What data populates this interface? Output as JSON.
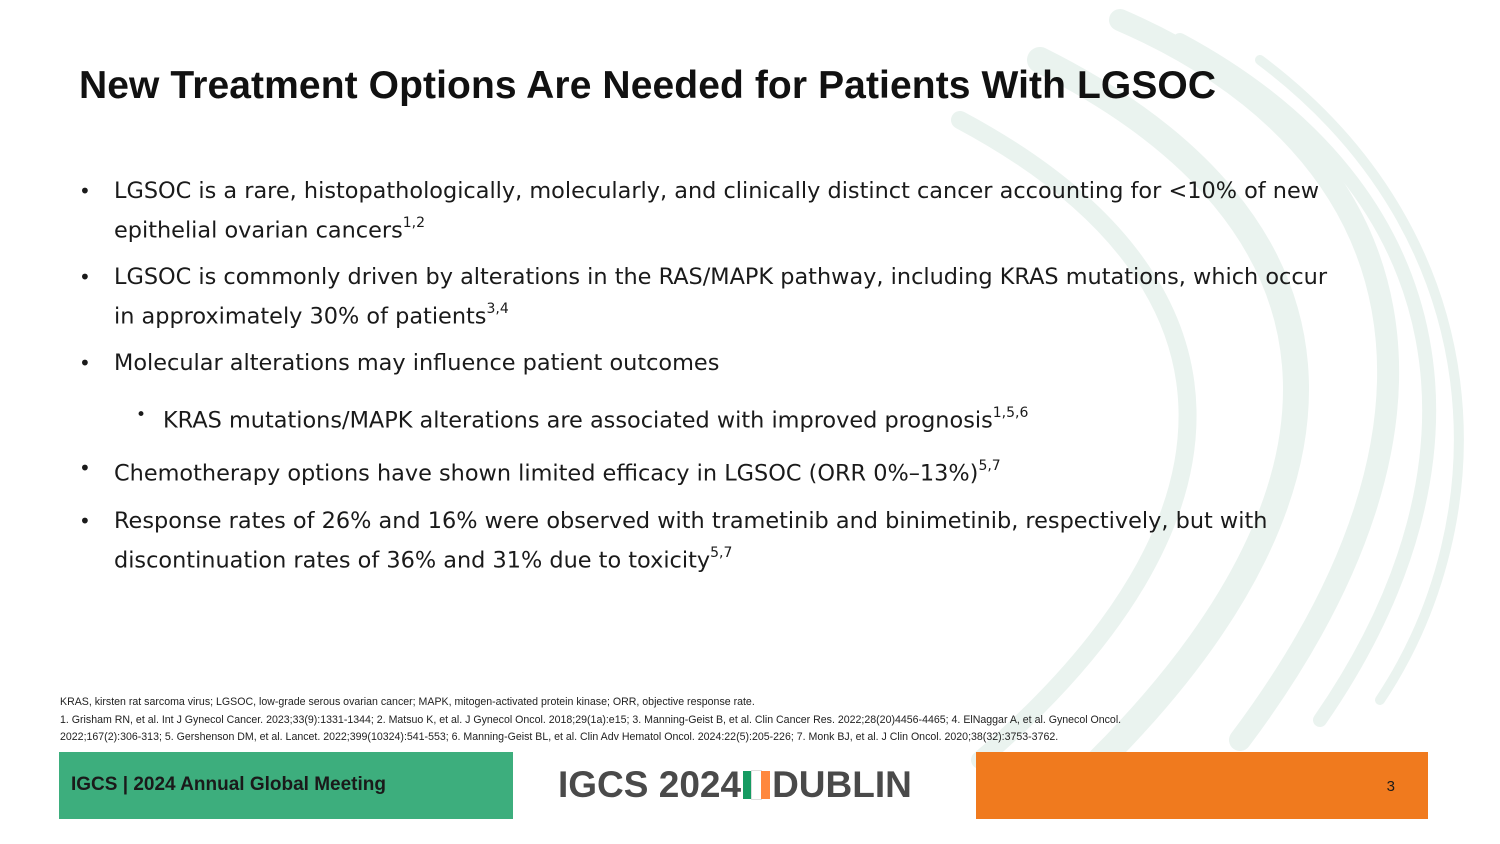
{
  "slide": {
    "title": "New Treatment Options Are Needed for Patients With LGSOC",
    "page_number": "3"
  },
  "bullets": [
    {
      "line1": "LGSOC is a rare, histopathologically, molecularly, and clinically distinct cancer accounting for <10% of new",
      "line2": "epithelial ovarian cancers",
      "refs": "1,2"
    },
    {
      "line1": "LGSOC is commonly driven by alterations in the RAS/MAPK pathway, including KRAS mutations, which occur",
      "line2": "in approximately 30% of patients",
      "refs": "3,4"
    },
    {
      "line1": "Molecular alterations may influence patient outcomes"
    },
    {
      "line1": "KRAS mutations/MAPK alterations are associated with improved prognosis",
      "refs": "1,5,6"
    },
    {
      "line1": "Chemotherapy options have shown limited efficacy in LGSOC (ORR 0%–13%)",
      "refs": "5,7"
    },
    {
      "line1": "Response rates of 26% and 16% were observed with trametinib and binimetinib, respectively, but with",
      "line2": "discontinuation rates of 36% and 31% due to toxicity",
      "refs": "5,7"
    }
  ],
  "bullet_glyph": "•",
  "footnotes": {
    "abbreviations": "KRAS, kirsten rat sarcoma virus; LGSOC, low-grade serous ovarian cancer; MAPK, mitogen-activated protein kinase; ORR, objective response rate.",
    "ref_line1": "1. Grisham RN, et al. Int J Gynecol Cancer. 2023;33(9):1331-1344; 2. Matsuo K, et al. J Gynecol Oncol. 2018;29(1a):e15; 3. Manning-Geist B, et al. Clin Cancer Res. 2022;28(20)4456-4465; 4. ElNaggar A, et al. Gynecol Oncol.",
    "ref_line2": "2022;167(2):306-313; 5. Gershenson DM, et al. Lancet. 2022;399(10324):541-553; 6. Manning-Geist BL, et al. Clin Adv Hematol Oncol. 2024:22(5):205-226; 7. Monk BJ, et al. J Clin Oncol. 2020;38(32):3753-3762."
  },
  "footer": {
    "meeting": "IGCS | 2024 Annual Global Meeting",
    "logo_left": "IGCS 2024",
    "logo_right": "DUBLIN"
  },
  "colors": {
    "footer_green": "#3dae7d",
    "footer_orange": "#f07a1e",
    "flag_green": "#169b62",
    "flag_white": "#ffffff",
    "flag_orange": "#ff883e"
  }
}
